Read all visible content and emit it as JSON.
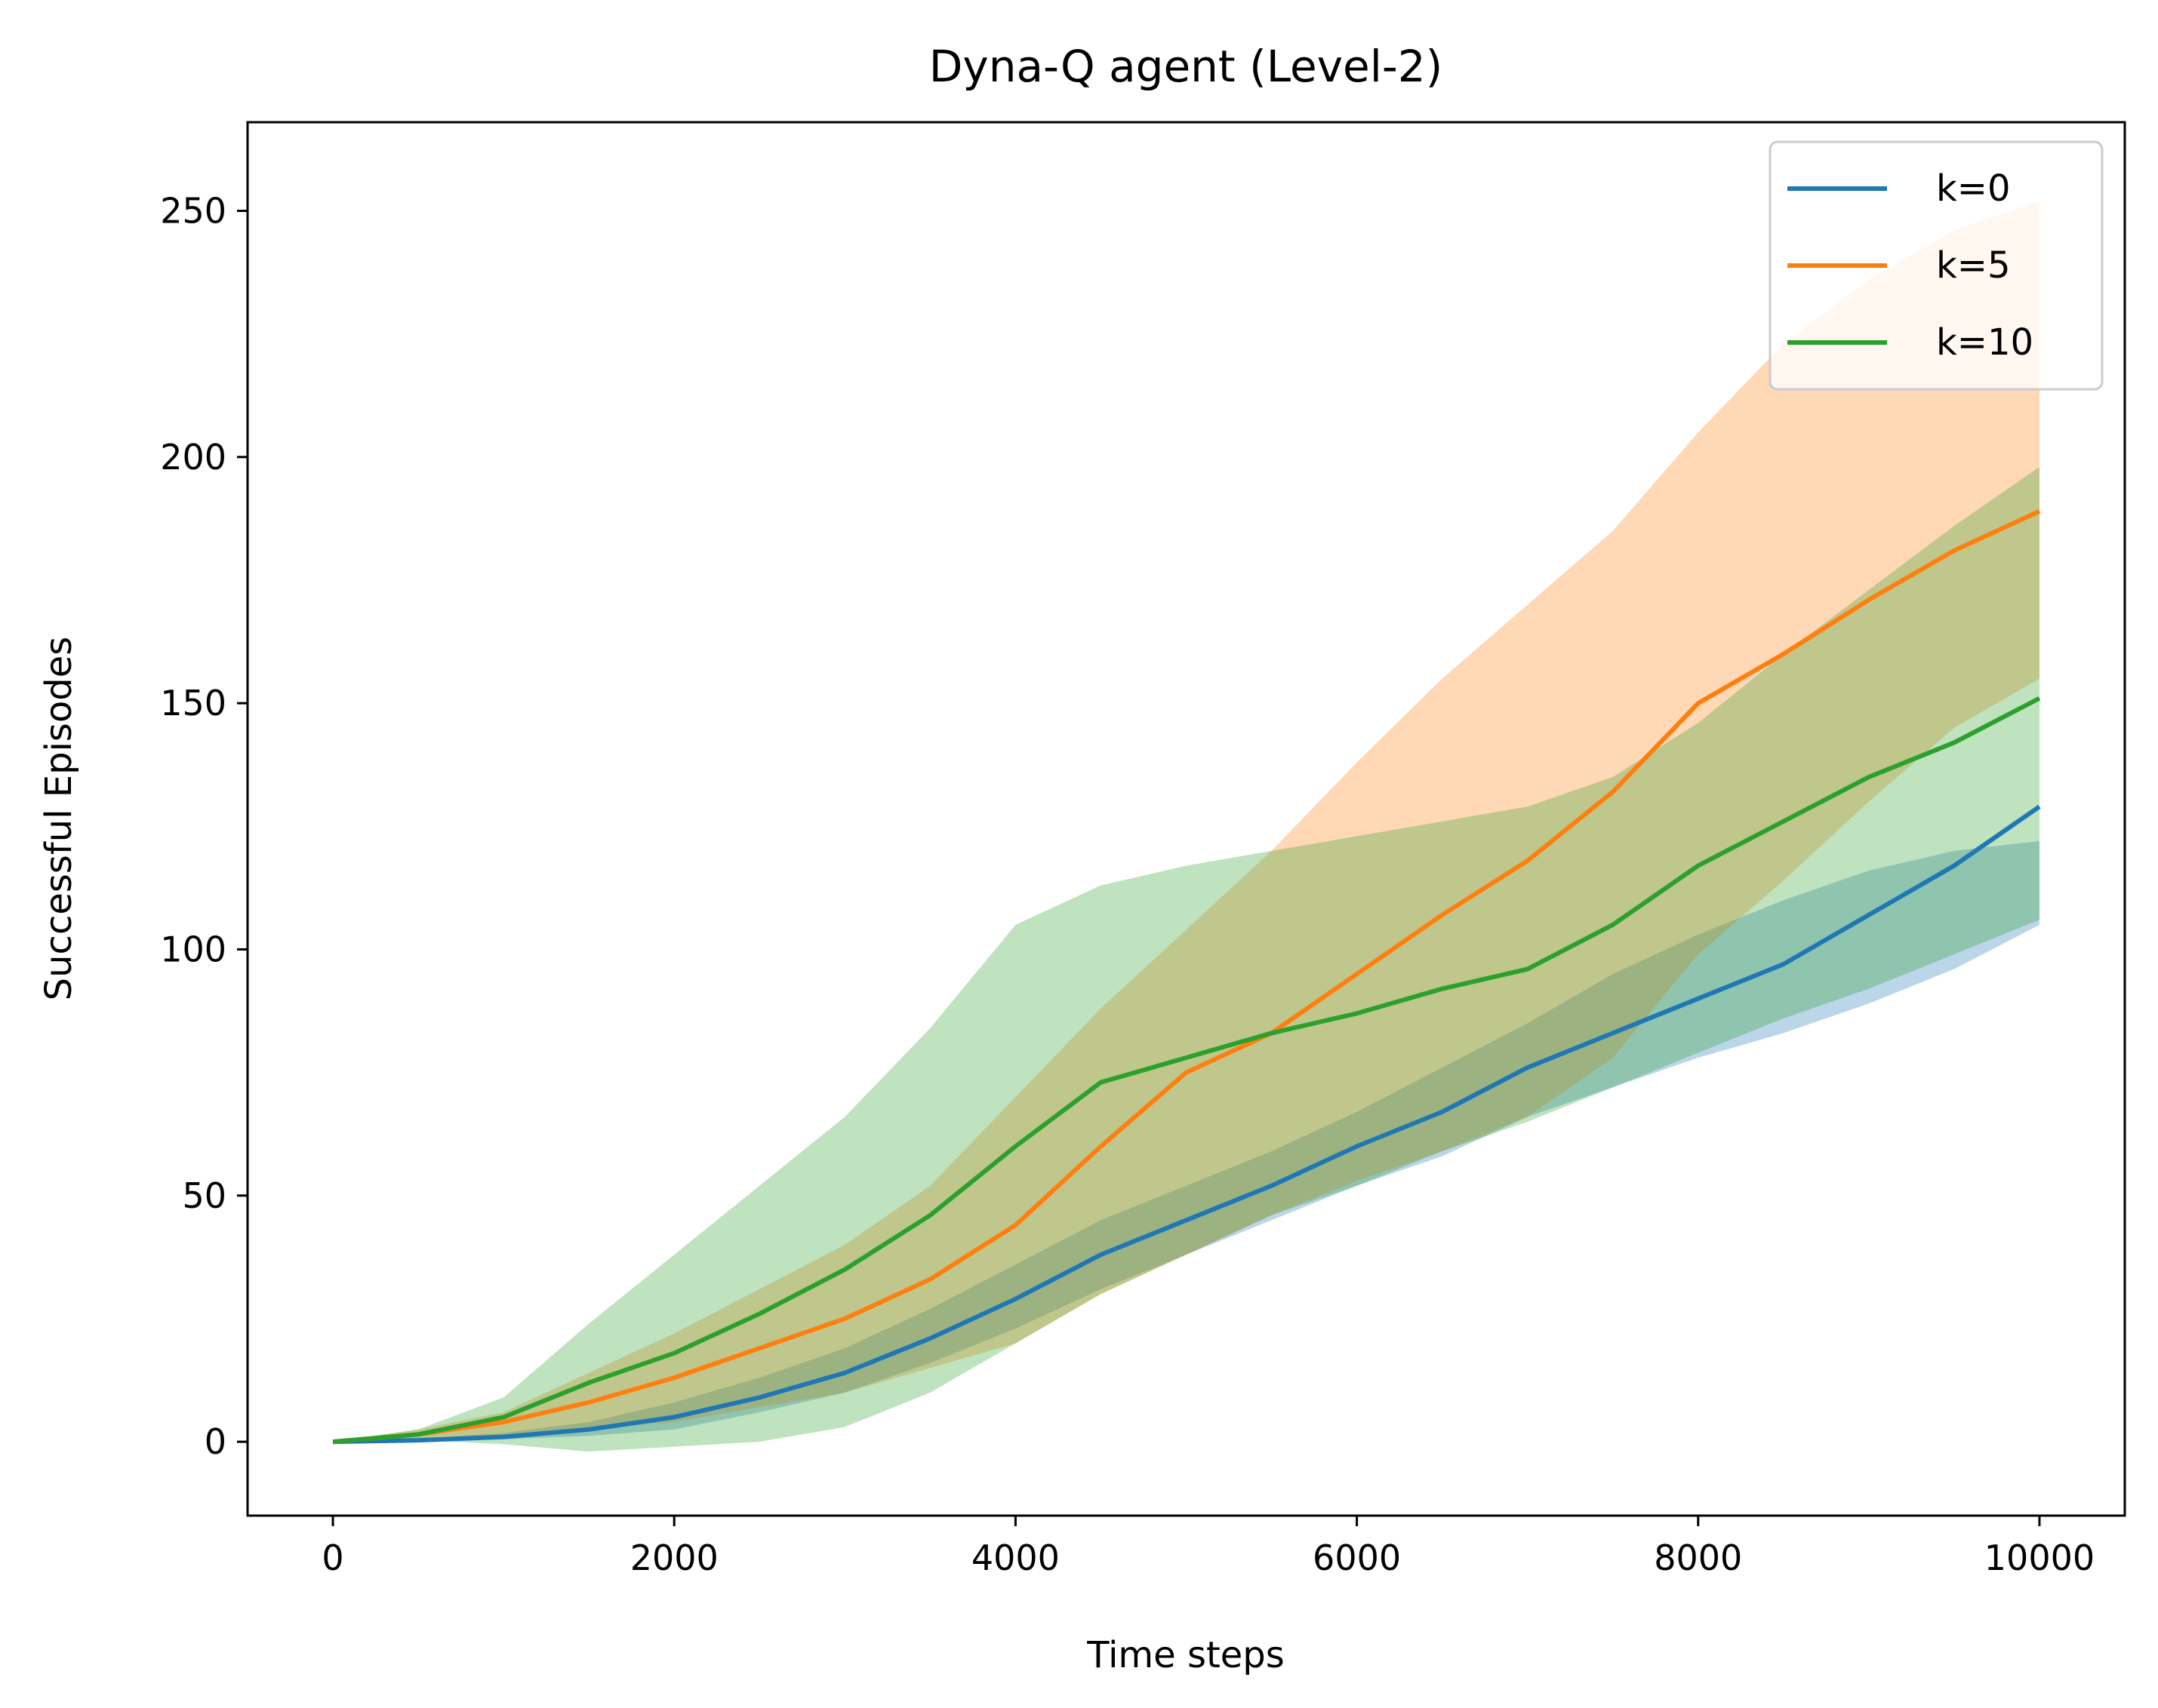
{
  "chart_data": {
    "type": "line",
    "title": "Dyna-Q agent (Level-2)",
    "xlabel": "Time steps",
    "ylabel": "Successful Episodes",
    "xlim": [
      -500,
      10500
    ],
    "ylim": [
      -15,
      268
    ],
    "xticks": [
      0,
      2000,
      4000,
      6000,
      8000,
      10000
    ],
    "yticks": [
      0,
      50,
      100,
      150,
      200,
      250
    ],
    "grid": false,
    "legend_position": "top-right",
    "x": [
      0,
      500,
      1000,
      1500,
      2000,
      2500,
      3000,
      3500,
      4000,
      4500,
      5000,
      5500,
      6000,
      6500,
      7000,
      7500,
      8000,
      8500,
      9000,
      9500,
      10000
    ],
    "series": [
      {
        "name": "k=0",
        "color": "#1f77b4",
        "values": [
          0,
          0.3,
          1,
          2.5,
          5,
          9,
          14,
          21,
          29,
          38,
          45,
          52,
          60,
          67,
          76,
          83,
          90,
          97,
          107,
          117,
          129
        ],
        "lower": [
          0,
          0.2,
          0.5,
          1.2,
          2.5,
          6,
          10,
          16,
          23,
          31,
          38,
          45,
          52,
          58,
          66,
          72,
          78,
          83,
          89,
          96,
          105
        ],
        "upper": [
          0,
          0.6,
          1.8,
          4,
          8,
          13,
          19,
          27,
          36,
          45,
          52,
          59,
          67,
          76,
          85,
          95,
          103,
          110,
          116,
          120,
          122
        ]
      },
      {
        "name": "k=5",
        "color": "#ff7f0e",
        "values": [
          0,
          1.5,
          4,
          8,
          13,
          19,
          25,
          33,
          44,
          60,
          75,
          83,
          95,
          107,
          118,
          132,
          150,
          160,
          171,
          181,
          189
        ],
        "lower": [
          0,
          0.5,
          1,
          2.5,
          4,
          7,
          10,
          15,
          20,
          30,
          38,
          46,
          53,
          59,
          66,
          78,
          99,
          114,
          130,
          145,
          155
        ],
        "upper": [
          0,
          2.5,
          6,
          14,
          22,
          31,
          40,
          52,
          70,
          88,
          104,
          120,
          138,
          155,
          170,
          185,
          205,
          223,
          236,
          246,
          252
        ]
      },
      {
        "name": "k=10",
        "color": "#2ca02c",
        "values": [
          0,
          1.5,
          5,
          12,
          18,
          26,
          35,
          46,
          60,
          73,
          78,
          83,
          87,
          92,
          96,
          105,
          117,
          126,
          135,
          142,
          151
        ],
        "lower": [
          0,
          0.3,
          -0.5,
          -2,
          -1,
          0,
          3,
          10,
          20,
          30,
          38,
          46,
          52,
          59,
          65,
          72,
          79,
          86,
          92,
          99,
          106
        ],
        "upper": [
          0,
          2.5,
          9,
          24,
          38,
          52,
          66,
          84,
          105,
          113,
          117,
          120,
          123,
          126,
          129,
          135,
          146,
          160,
          173,
          186,
          198
        ]
      }
    ],
    "legend": [
      {
        "label": "k=0",
        "color": "#1f77b4"
      },
      {
        "label": "k=5",
        "color": "#ff7f0e"
      },
      {
        "label": "k=10",
        "color": "#2ca02c"
      }
    ]
  }
}
